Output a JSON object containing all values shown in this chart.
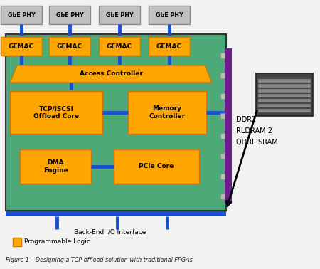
{
  "title": "Figure 1 – Designing a TCP offload solution with traditional FPGAs",
  "bg_color": "#f2f2f2",
  "fpga_bg": "#4daa78",
  "orange_color": "#FFA500",
  "orange_dark": "#cc7700",
  "blue_line": "#1a4fcc",
  "purple_bar": "#6a1f8a",
  "gray_box": "#c0c0c0",
  "gray_box_edge": "#888888",
  "phy_labels": [
    "GbE PHY",
    "GbE PHY",
    "GbE PHY",
    "GbE PHY"
  ],
  "gemac_labels": [
    "GEMAC",
    "GEMAC",
    "GEMAC",
    "GEMAC"
  ],
  "access_controller": "Access Controller",
  "tcp_label": "TCP/iSCSI\nOffload Core",
  "memory_ctrl": "Memory\nController",
  "dma_label": "DMA\nEngine",
  "pcie_label": "PCIe Core",
  "backend_label": "Back-End I/O Interface",
  "legend_label": "Programmable Logic",
  "ddr_labels": [
    "DDR2",
    "RLDRAM 2",
    "QDRII SRAM"
  ]
}
